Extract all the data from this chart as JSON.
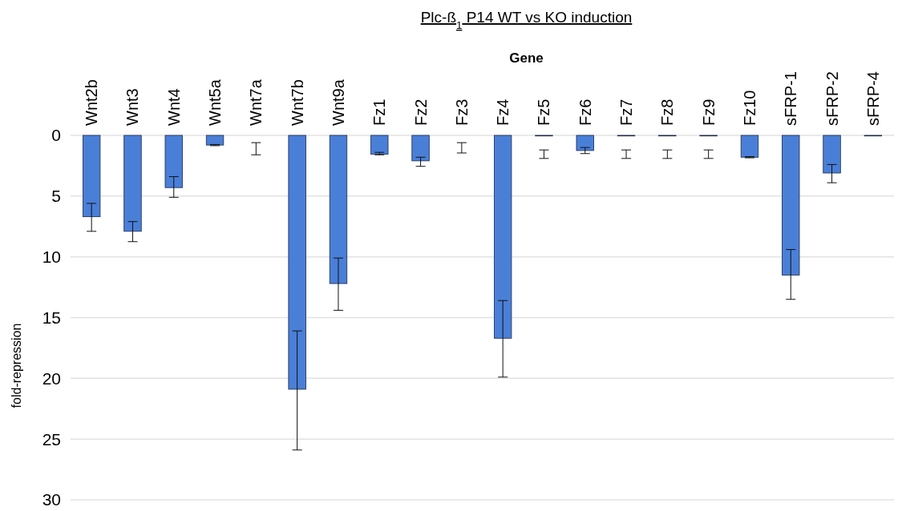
{
  "chart_data": {
    "type": "bar",
    "title": "Plc-ß$_{1}$ P14 WT vs KO induction",
    "xlabel": "Gene",
    "ylabel": "fold-repression",
    "categories": [
      "Wnt2b",
      "Wnt3",
      "Wnt4",
      "Wnt5a",
      "Wnt7a",
      "Wnt7b",
      "Wnt9a",
      "Fz1",
      "Fz2",
      "Fz3",
      "Fz4",
      "Fz5",
      "Fz6",
      "Fz7",
      "Fz8",
      "Fz9",
      "Fz10",
      "sFRP-1",
      "sFRP-2",
      "sFRP-4"
    ],
    "values": [
      6.7,
      7.9,
      4.3,
      0.8,
      0,
      20.9,
      12.2,
      1.55,
      2.1,
      0,
      16.7,
      0.05,
      1.25,
      0.05,
      0.05,
      0.05,
      1.8,
      11.5,
      3.1,
      0.05
    ],
    "errors": [
      [
        5.6,
        7.9
      ],
      [
        7.1,
        8.75
      ],
      [
        3.4,
        5.1
      ],
      [
        0.75,
        0.85
      ],
      [
        0.6,
        1.6
      ],
      [
        16.1,
        25.9
      ],
      [
        10.1,
        14.4
      ],
      [
        1.4,
        1.6
      ],
      [
        1.8,
        2.55
      ],
      [
        0.6,
        1.45
      ],
      [
        13.6,
        19.9
      ],
      [
        1.2,
        1.9
      ],
      [
        1.0,
        1.5
      ],
      [
        1.2,
        1.9
      ],
      [
        1.2,
        1.9
      ],
      [
        1.2,
        1.9
      ],
      [
        1.75,
        1.85
      ],
      [
        9.4,
        13.5
      ],
      [
        2.4,
        3.9
      ],
      null
    ],
    "color": "#4a7fd8",
    "ylim": [
      30,
      0
    ],
    "yticks": [
      0,
      5,
      10,
      15,
      20,
      25,
      30
    ],
    "grid": "y"
  }
}
